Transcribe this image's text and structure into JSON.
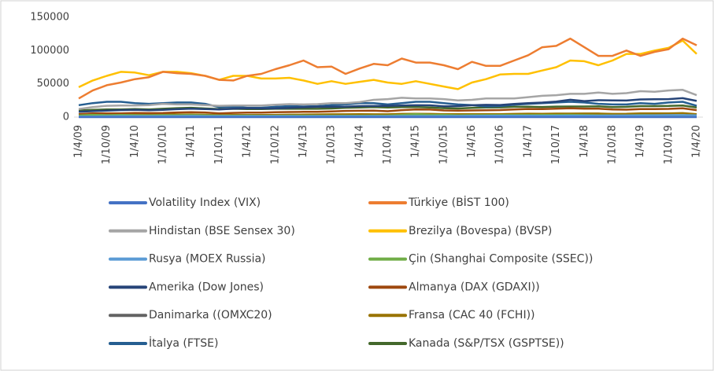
{
  "chart_data": {
    "type": "line",
    "categories": [
      "1/4/09",
      null,
      "1/10/09",
      null,
      "1/4/10",
      null,
      "1/10/10",
      null,
      "1/4/11",
      null,
      "1/10/11",
      null,
      "1/4/12",
      null,
      "1/10/12",
      null,
      "1/4/13",
      null,
      "1/10/13",
      null,
      "1/4/14",
      null,
      "1/10/14",
      null,
      "1/4/15",
      null,
      "1/10/15",
      null,
      "1/4/16",
      null,
      "1/10/16",
      null,
      "1/4/17",
      null,
      "1/10/17",
      null,
      "1/4/18",
      null,
      "1/10/18",
      null,
      "1/4/19",
      null,
      "1/10/19",
      null,
      "1/4/20"
    ],
    "ylim": [
      0,
      150000
    ],
    "yticks": [
      0,
      50000,
      100000,
      150000
    ],
    "series": [
      {
        "name": "Volatility Index (VIX)",
        "color": "#4472c4",
        "values": [
          36,
          26,
          24,
          20,
          20,
          24,
          20,
          18,
          16,
          30,
          32,
          20,
          18,
          18,
          16,
          14,
          14,
          16,
          14,
          14,
          13,
          13,
          15,
          16,
          14,
          13,
          24,
          20,
          14,
          13,
          14,
          12,
          11,
          10,
          10,
          16,
          14,
          13,
          16,
          20,
          14,
          14,
          14,
          14,
          40
        ]
      },
      {
        "name": "Türkiye (BİST 100)",
        "color": "#ed7d31",
        "values": [
          28000,
          40000,
          48000,
          52000,
          57000,
          60000,
          68000,
          66000,
          65000,
          62000,
          56000,
          55000,
          62000,
          65000,
          72000,
          78000,
          85000,
          75000,
          76000,
          65000,
          73000,
          80000,
          78000,
          88000,
          82000,
          82000,
          78000,
          72000,
          83000,
          77000,
          77000,
          85000,
          93000,
          105000,
          107000,
          118000,
          105000,
          92000,
          92000,
          100000,
          92000,
          98000,
          102000,
          118000,
          108000
        ]
      },
      {
        "name": "Hindistan (BSE Sensex 30)",
        "color": "#a5a5a5",
        "values": [
          12000,
          15000,
          17000,
          17500,
          17500,
          18000,
          20000,
          19000,
          19000,
          18000,
          17000,
          17500,
          17500,
          17500,
          18500,
          19500,
          19000,
          19500,
          21000,
          21000,
          22500,
          26000,
          27000,
          29000,
          28000,
          28000,
          27000,
          25000,
          26000,
          28000,
          28000,
          28000,
          30000,
          32000,
          33000,
          35000,
          35000,
          37000,
          35000,
          36000,
          39000,
          38000,
          40000,
          41000,
          33000
        ]
      },
      {
        "name": "Brezilya (Bovespa) (BVSP)",
        "color": "#ffc000",
        "values": [
          45000,
          55000,
          62000,
          68000,
          67000,
          63000,
          68000,
          68000,
          66000,
          62000,
          56000,
          62000,
          62000,
          58000,
          58000,
          59000,
          55000,
          50000,
          54000,
          50000,
          53000,
          56000,
          52000,
          50000,
          54000,
          50000,
          46000,
          42000,
          52000,
          57000,
          64000,
          65000,
          65000,
          70000,
          75000,
          85000,
          84000,
          78000,
          85000,
          95000,
          95000,
          100000,
          104000,
          115000,
          95000
        ]
      },
      {
        "name": "Rusya (MOEX Russia)",
        "color": "#5b9bd5",
        "values": [
          800,
          1000,
          1300,
          1400,
          1400,
          1400,
          1500,
          1700,
          1800,
          1500,
          1500,
          1500,
          1500,
          1400,
          1500,
          1500,
          1300,
          1400,
          1500,
          1450,
          1400,
          1450,
          1400,
          1600,
          1700,
          1650,
          1700,
          1800,
          1900,
          1950,
          2000,
          2100,
          2000,
          1900,
          2100,
          2300,
          2300,
          2300,
          2400,
          2500,
          2500,
          2700,
          2900,
          3000,
          2600
        ]
      },
      {
        "name": "Çin (Shanghai Composite (SSEC))",
        "color": "#70ad47",
        "values": [
          2500,
          3400,
          3000,
          3300,
          3000,
          2600,
          2900,
          2800,
          2900,
          2700,
          2400,
          2300,
          2400,
          2100,
          2100,
          2300,
          2200,
          2000,
          2100,
          2000,
          2000,
          2200,
          2400,
          3200,
          4400,
          3600,
          3400,
          2700,
          2900,
          3000,
          3100,
          3100,
          3100,
          3200,
          3300,
          3480,
          3100,
          2800,
          2600,
          2600,
          3100,
          2900,
          2900,
          3000,
          2800
        ]
      },
      {
        "name": "Amerika (Dow Jones)",
        "color": "#264478",
        "values": [
          8000,
          9000,
          9700,
          10500,
          11000,
          10400,
          11000,
          11900,
          12800,
          12100,
          11600,
          12600,
          13200,
          13000,
          13100,
          13900,
          14800,
          15500,
          15500,
          15700,
          16500,
          16600,
          17000,
          17500,
          17800,
          17700,
          16300,
          16500,
          17800,
          18400,
          18200,
          19900,
          20900,
          21900,
          23400,
          26100,
          24100,
          25400,
          25100,
          24900,
          26600,
          26900,
          27000,
          28500,
          24300
        ]
      },
      {
        "name": "Almanya (DAX (GDAXI))",
        "color": "#9e480e",
        "values": [
          4500,
          5500,
          5700,
          5600,
          6100,
          6000,
          6300,
          7000,
          7400,
          7000,
          5500,
          6400,
          6800,
          6700,
          7300,
          7700,
          7900,
          8000,
          8600,
          9300,
          9600,
          9700,
          8900,
          10500,
          11500,
          11300,
          10000,
          9800,
          10000,
          10300,
          10600,
          11500,
          12300,
          12100,
          12800,
          13200,
          12600,
          12800,
          11400,
          11200,
          12200,
          12000,
          12400,
          13200,
          10500
        ]
      },
      {
        "name": "Danimarka ((OMXC20)",
        "color": "#636363",
        "values": [
          300,
          350,
          380,
          400,
          420,
          420,
          440,
          460,
          450,
          400,
          380,
          420,
          450,
          470,
          490,
          520,
          550,
          600,
          650,
          700,
          750,
          800,
          850,
          900,
          950,
          950,
          1000,
          950,
          950,
          900,
          900,
          950,
          1000,
          1050,
          1100,
          1150,
          1050,
          1000,
          950,
          980,
          1000,
          1050,
          1100,
          1150,
          1200
        ]
      },
      {
        "name": "Fransa (CAC 40 (FCHI))",
        "color": "#997300",
        "values": [
          3100,
          3500,
          3700,
          3900,
          3800,
          3600,
          3800,
          3900,
          4000,
          3500,
          3100,
          3300,
          3200,
          3300,
          3400,
          3700,
          3800,
          4000,
          4200,
          4300,
          4400,
          4200,
          4200,
          4800,
          5000,
          4800,
          4500,
          4400,
          4400,
          4400,
          4500,
          4900,
          5200,
          5100,
          5300,
          5300,
          5400,
          5400,
          4900,
          5000,
          5500,
          5500,
          5700,
          6000,
          4500
        ]
      },
      {
        "name": "İtalya (FTSE)",
        "color": "#255e91",
        "values": [
          18000,
          21000,
          23000,
          23000,
          21000,
          20000,
          21000,
          22000,
          22000,
          20000,
          15000,
          15500,
          14000,
          14000,
          15500,
          16500,
          16000,
          16500,
          18000,
          19000,
          21000,
          21000,
          19000,
          21000,
          23000,
          23000,
          21000,
          19000,
          18000,
          16000,
          16500,
          18500,
          20000,
          21000,
          22000,
          23000,
          22000,
          20000,
          19000,
          19000,
          21000,
          20000,
          22000,
          23000,
          17000
        ]
      },
      {
        "name": "Kanada (S&P/TSX (GSPTSE))",
        "color": "#43682b",
        "values": [
          10000,
          11000,
          11500,
          11500,
          12000,
          11500,
          12500,
          13500,
          14000,
          13000,
          12000,
          12500,
          12000,
          12000,
          12500,
          12700,
          12500,
          12500,
          13000,
          14000,
          14500,
          15000,
          14500,
          15000,
          15200,
          14500,
          13500,
          13000,
          13800,
          14500,
          14600,
          15500,
          15600,
          15200,
          15800,
          16000,
          15900,
          16300,
          15000,
          15500,
          16500,
          16500,
          16800,
          17500,
          14500
        ]
      }
    ]
  }
}
